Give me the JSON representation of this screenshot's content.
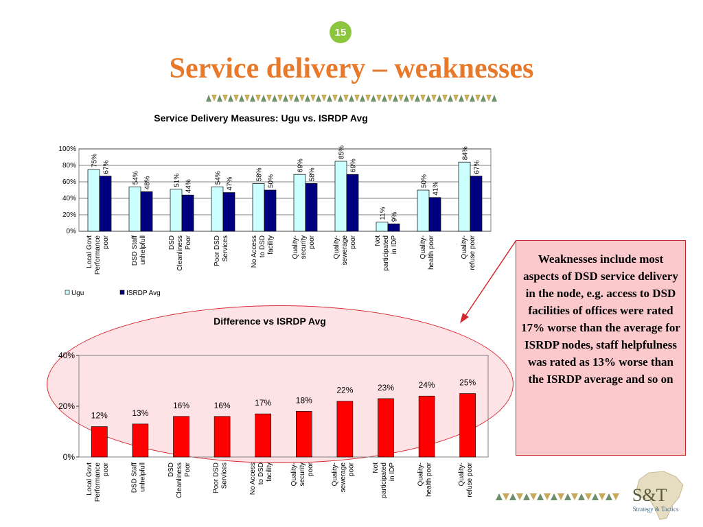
{
  "slide": {
    "page_number": "15",
    "title": "Service delivery – weaknesses",
    "callout_text": "Weaknesses include most aspects of DSD service delivery in the node, e.g. access to DSD facilities of offices were rated 17% worse than  the average for ISRDP nodes, staff helpfulness was rated as 13% worse than the ISRDP average and so on",
    "logo": {
      "mark": "S&T",
      "tagline": "Strategy & Tactics"
    },
    "colors": {
      "title": "#e8792b",
      "page_badge": "#8cc63f",
      "ugu": "#ccffff",
      "isrdp": "#000080",
      "difference": "#ff0000",
      "callout_fill": "#fbc9cc",
      "border_triangles_green": "#6e8f6c",
      "border_triangles_tan": "#c8a85a"
    }
  },
  "chart_data": [
    {
      "type": "bar",
      "title": "Service Delivery Measures: Ugu vs. ISRDP Avg",
      "categories": [
        "Local Govt Performance poor",
        "DSD Staff unhelpfull",
        "DSD Cleanliness Poor",
        "Poor DSD Services",
        "No Access to DSD facility",
        "Quality- security poor",
        "Quality- sewerage poor",
        "Not participated in IDP",
        "Quality- health poor",
        "Quality- refuse poor"
      ],
      "series": [
        {
          "name": "Ugu",
          "values": [
            75,
            54,
            51,
            54,
            58,
            69,
            85,
            11,
            50,
            84
          ],
          "labels": [
            "75%",
            "54%",
            "51%",
            "54%",
            "58%",
            "69%",
            "85%",
            "11%",
            "50%",
            "84%"
          ]
        },
        {
          "name": "ISRDP Avg",
          "values": [
            67,
            48,
            44,
            47,
            50,
            58,
            69,
            9,
            41,
            67
          ],
          "labels": [
            "67%",
            "48%",
            "44%",
            "47%",
            "50%",
            "58%",
            "69%",
            "9%",
            "41%",
            "67%"
          ]
        }
      ],
      "yticks": [
        "0%",
        "20%",
        "40%",
        "60%",
        "80%",
        "100%"
      ],
      "ylim": [
        0,
        100
      ],
      "legend_position": "bottom-left",
      "grid": true
    },
    {
      "type": "bar",
      "title": "Difference vs ISRDP Avg",
      "categories": [
        "Local Govt Performance poor",
        "DSD Staff unhelpfull",
        "DSD Cleanliness Poor",
        "Poor DSD Services",
        "No Access to DSD facility",
        "Quality- security poor",
        "Quality- sewerage poor",
        "Not participated in IDP",
        "Quality- health poor",
        "Quality- refuse poor"
      ],
      "values": [
        12,
        13,
        16,
        16,
        17,
        18,
        22,
        23,
        24,
        25
      ],
      "labels": [
        "12%",
        "13%",
        "16%",
        "16%",
        "17%",
        "18%",
        "22%",
        "23%",
        "24%",
        "25%"
      ],
      "yticks": [
        "0%",
        "20%",
        "40%"
      ],
      "ylim": [
        0,
        40
      ],
      "grid": false
    }
  ]
}
